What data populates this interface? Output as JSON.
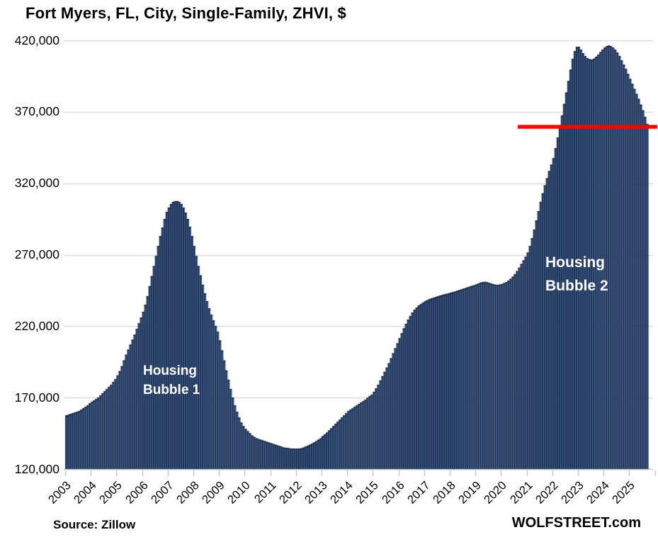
{
  "title": "Fort Myers, FL, City, Single-Family, ZHVI, $",
  "footer": {
    "source": "Source: Zillow",
    "watermark": "WOLFSTREET.com"
  },
  "annotations": {
    "bubble1": {
      "line1": "Housing",
      "line2": "Bubble 1"
    },
    "bubble2": {
      "line1": "Housing",
      "line2": "Bubble 2"
    }
  },
  "colors": {
    "bar_fill": "#1c2f50",
    "bar_stripe": "#4c70a4",
    "bar_cap": "#121e33",
    "red_line": "#fe0000",
    "gridline": "#d9d9d9",
    "axis": "#c2c2c2",
    "annotation_text": "#ffffff",
    "text": "#000000"
  },
  "chart_data": {
    "type": "bar",
    "title": "Fort Myers, FL, City, Single-Family, ZHVI, $",
    "xlabel": "",
    "ylabel": "ZHVI, $",
    "unit": "USD",
    "frequency": "monthly",
    "start_month": "2003-01",
    "end_month": "2025-09",
    "ylim": [
      120000,
      420000
    ],
    "grid": "horizontal",
    "legend": "none",
    "y_ticks": [
      120000,
      170000,
      220000,
      270000,
      320000,
      370000,
      420000
    ],
    "y_tick_labels": [
      "120,000",
      "170,000",
      "220,000",
      "270,000",
      "320,000",
      "370,000",
      "420,000"
    ],
    "x_tick_labels": [
      "2003",
      "2004",
      "2005",
      "2006",
      "2007",
      "2008",
      "2009",
      "2010",
      "2011",
      "2012",
      "2013",
      "2014",
      "2015",
      "2016",
      "2017",
      "2018",
      "2019",
      "2020",
      "2021",
      "2022",
      "2023",
      "2024",
      "2025"
    ],
    "red_line": {
      "value": 359500,
      "from_year": 2020.65,
      "note": "horizontal red reference line at latest price level, drawn across Housing Bubble 2"
    },
    "annotation_points": [
      {
        "text": "Housing Bubble 1",
        "x_year": 2006.1,
        "y_value": 180000
      },
      {
        "text": "Housing Bubble 2",
        "x_year": 2021.9,
        "y_value": 255000
      }
    ],
    "values": [
      157500,
      158000,
      158500,
      159000,
      159500,
      160000,
      160500,
      161500,
      162500,
      163500,
      164500,
      166000,
      167000,
      168000,
      169000,
      170000,
      171500,
      173000,
      174500,
      176000,
      177500,
      179000,
      181000,
      183000,
      185500,
      188500,
      192000,
      196000,
      200000,
      203500,
      207000,
      210500,
      214000,
      218000,
      222000,
      226000,
      230000,
      235000,
      241000,
      248000,
      255000,
      262000,
      269000,
      276000,
      283000,
      289000,
      295000,
      300000,
      303000,
      305500,
      307000,
      307500,
      307500,
      307000,
      305500,
      303000,
      299500,
      295000,
      289500,
      283000,
      276000,
      269000,
      262000,
      255500,
      249000,
      243000,
      237500,
      232500,
      228000,
      224000,
      220000,
      216000,
      210000,
      203000,
      196000,
      189000,
      182500,
      176000,
      170000,
      164500,
      160000,
      156000,
      152500,
      150000,
      148000,
      146500,
      145000,
      143500,
      142500,
      141500,
      141000,
      140500,
      140000,
      139500,
      139000,
      138500,
      138000,
      137500,
      137000,
      136500,
      136000,
      135500,
      135000,
      134800,
      134600,
      134400,
      134300,
      134200,
      134200,
      134300,
      134500,
      135000,
      135600,
      136300,
      137000,
      137800,
      138600,
      139500,
      140500,
      141500,
      143000,
      144200,
      145500,
      147000,
      148500,
      150000,
      151500,
      153000,
      154500,
      156000,
      157500,
      159000,
      160500,
      161500,
      162500,
      163500,
      164500,
      165500,
      166500,
      167500,
      168500,
      169800,
      171000,
      172000,
      174000,
      176500,
      179000,
      182000,
      185000,
      188000,
      191000,
      194000,
      197500,
      201000,
      204500,
      208000,
      211500,
      215000,
      218500,
      221500,
      224500,
      227000,
      229500,
      231500,
      233000,
      234500,
      235500,
      236500,
      237500,
      238200,
      238900,
      239500,
      240000,
      240500,
      241000,
      241400,
      241800,
      242200,
      242600,
      243000,
      243400,
      243800,
      244200,
      244700,
      245200,
      245700,
      246200,
      246700,
      247200,
      247700,
      248200,
      248600,
      249200,
      249900,
      250500,
      250900,
      251000,
      250700,
      250200,
      249700,
      249300,
      249000,
      248900,
      249100,
      249500,
      250100,
      250900,
      251900,
      253100,
      254600,
      256400,
      258500,
      260900,
      263500,
      266000,
      268500,
      271500,
      276000,
      281500,
      287500,
      294000,
      300500,
      307000,
      313000,
      318500,
      323500,
      328500,
      333000,
      337500,
      344500,
      352000,
      359500,
      367500,
      375500,
      383500,
      391500,
      399500,
      407000,
      412500,
      415500,
      415500,
      413500,
      411000,
      409000,
      407500,
      406800,
      406500,
      407200,
      408500,
      410000,
      411800,
      413500,
      415000,
      416000,
      416500,
      416000,
      415000,
      413500,
      411500,
      409000,
      406000,
      403000,
      400000,
      396500,
      393000,
      389500,
      386000,
      382500,
      379000,
      375000,
      371000,
      366500,
      361500
    ]
  }
}
